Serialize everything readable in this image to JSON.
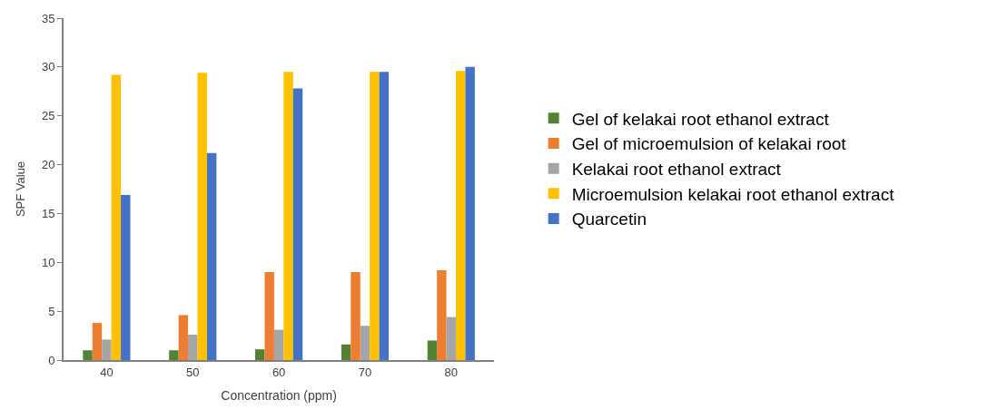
{
  "chart_data": {
    "type": "bar",
    "xlabel": "Concentration (ppm)",
    "ylabel": "SPF Value",
    "categories": [
      "40",
      "50",
      "60",
      "70",
      "80"
    ],
    "series": [
      {
        "name": "Gel of kelakai root ethanol extract",
        "color": "#548235",
        "values": [
          1.0,
          1.0,
          1.1,
          1.6,
          2.0
        ]
      },
      {
        "name": "Gel of microemulsion of kelakai root",
        "color": "#ed7d31",
        "values": [
          3.8,
          4.6,
          9.0,
          9.0,
          9.2
        ]
      },
      {
        "name": "Kelakai root ethanol extract",
        "color": "#a5a5a5",
        "values": [
          2.1,
          2.6,
          3.1,
          3.5,
          4.4
        ]
      },
      {
        "name": "Microemulsion kelakai root ethanol extract",
        "color": "#ffc000",
        "values": [
          29.2,
          29.4,
          29.5,
          29.5,
          29.6
        ]
      },
      {
        "name": "Quarcetin",
        "color": "#4472c4",
        "values": [
          16.9,
          21.2,
          27.8,
          29.5,
          30.0
        ]
      }
    ],
    "ylim": [
      0,
      35
    ],
    "yticks": [
      0,
      5,
      10,
      15,
      20,
      25,
      30,
      35
    ],
    "legend": "right"
  }
}
